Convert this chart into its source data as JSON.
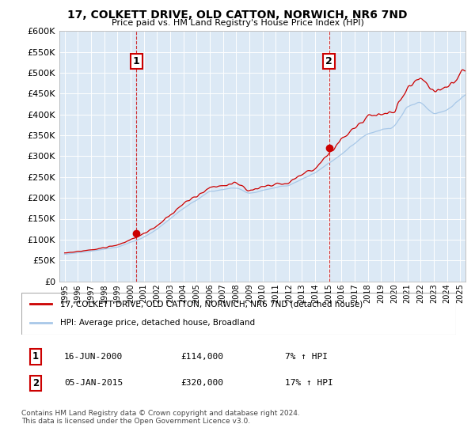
{
  "title": "17, COLKETT DRIVE, OLD CATTON, NORWICH, NR6 7ND",
  "subtitle": "Price paid vs. HM Land Registry's House Price Index (HPI)",
  "legend_line1": "17, COLKETT DRIVE, OLD CATTON, NORWICH, NR6 7ND (detached house)",
  "legend_line2": "HPI: Average price, detached house, Broadland",
  "footnote": "Contains HM Land Registry data © Crown copyright and database right 2024.\nThis data is licensed under the Open Government Licence v3.0.",
  "sale1_label": "1",
  "sale1_date": "16-JUN-2000",
  "sale1_price": "£114,000",
  "sale1_hpi": "7% ↑ HPI",
  "sale1_year": 2000.46,
  "sale1_value": 114000,
  "sale2_label": "2",
  "sale2_date": "05-JAN-2015",
  "sale2_price": "£320,000",
  "sale2_hpi": "17% ↑ HPI",
  "sale2_year": 2015.02,
  "sale2_value": 320000,
  "hpi_color": "#a8c8e8",
  "price_color": "#cc0000",
  "dashed_color": "#cc0000",
  "ylim_min": 0,
  "ylim_max": 600000,
  "ytick_step": 50000,
  "background_color": "#ffffff",
  "plot_bg_color": "#dce9f5",
  "grid_color": "#ffffff"
}
